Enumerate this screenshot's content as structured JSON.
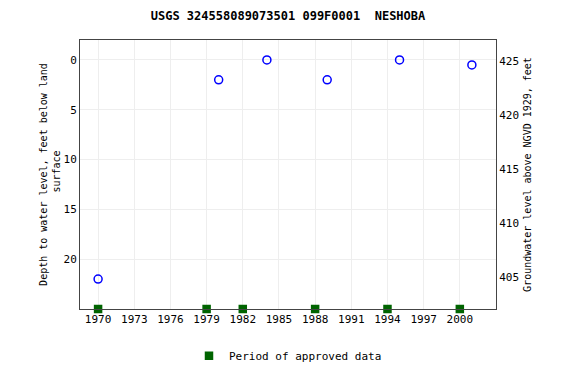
{
  "chart_data": {
    "type": "scatter",
    "title": "USGS 324558089073501 099F0001  NESHOBA",
    "y_label": "Depth to water level, feet below land\n surface",
    "y2_label": "Groundwater level above NGVD 1929, feet",
    "series": [
      {
        "x": [
          1970,
          1980,
          1984,
          1989,
          1995,
          2001
        ],
        "values": [
          22,
          2,
          0,
          2,
          0,
          0.5
        ],
        "color": "blue",
        "marker": "circle-open"
      },
      {
        "name": "Period of approved data",
        "x": [
          1970,
          1979,
          1982,
          1988,
          1994,
          2000
        ],
        "values": [
          25,
          25,
          25,
          25,
          25,
          25
        ],
        "color": "#006400",
        "marker": "square"
      }
    ],
    "xlim": [
      1968.5,
      2003
    ],
    "xticks": [
      1970,
      1973,
      1976,
      1979,
      1982,
      1985,
      1988,
      1991,
      1994,
      1997,
      2000
    ],
    "ylim": [
      25,
      -2
    ],
    "yticks": [
      0,
      5,
      10,
      15,
      20
    ],
    "y2lim": [
      402,
      427
    ],
    "y2ticks": [
      425,
      420,
      415,
      410,
      405
    ],
    "grid": true,
    "legend": "bottom"
  }
}
